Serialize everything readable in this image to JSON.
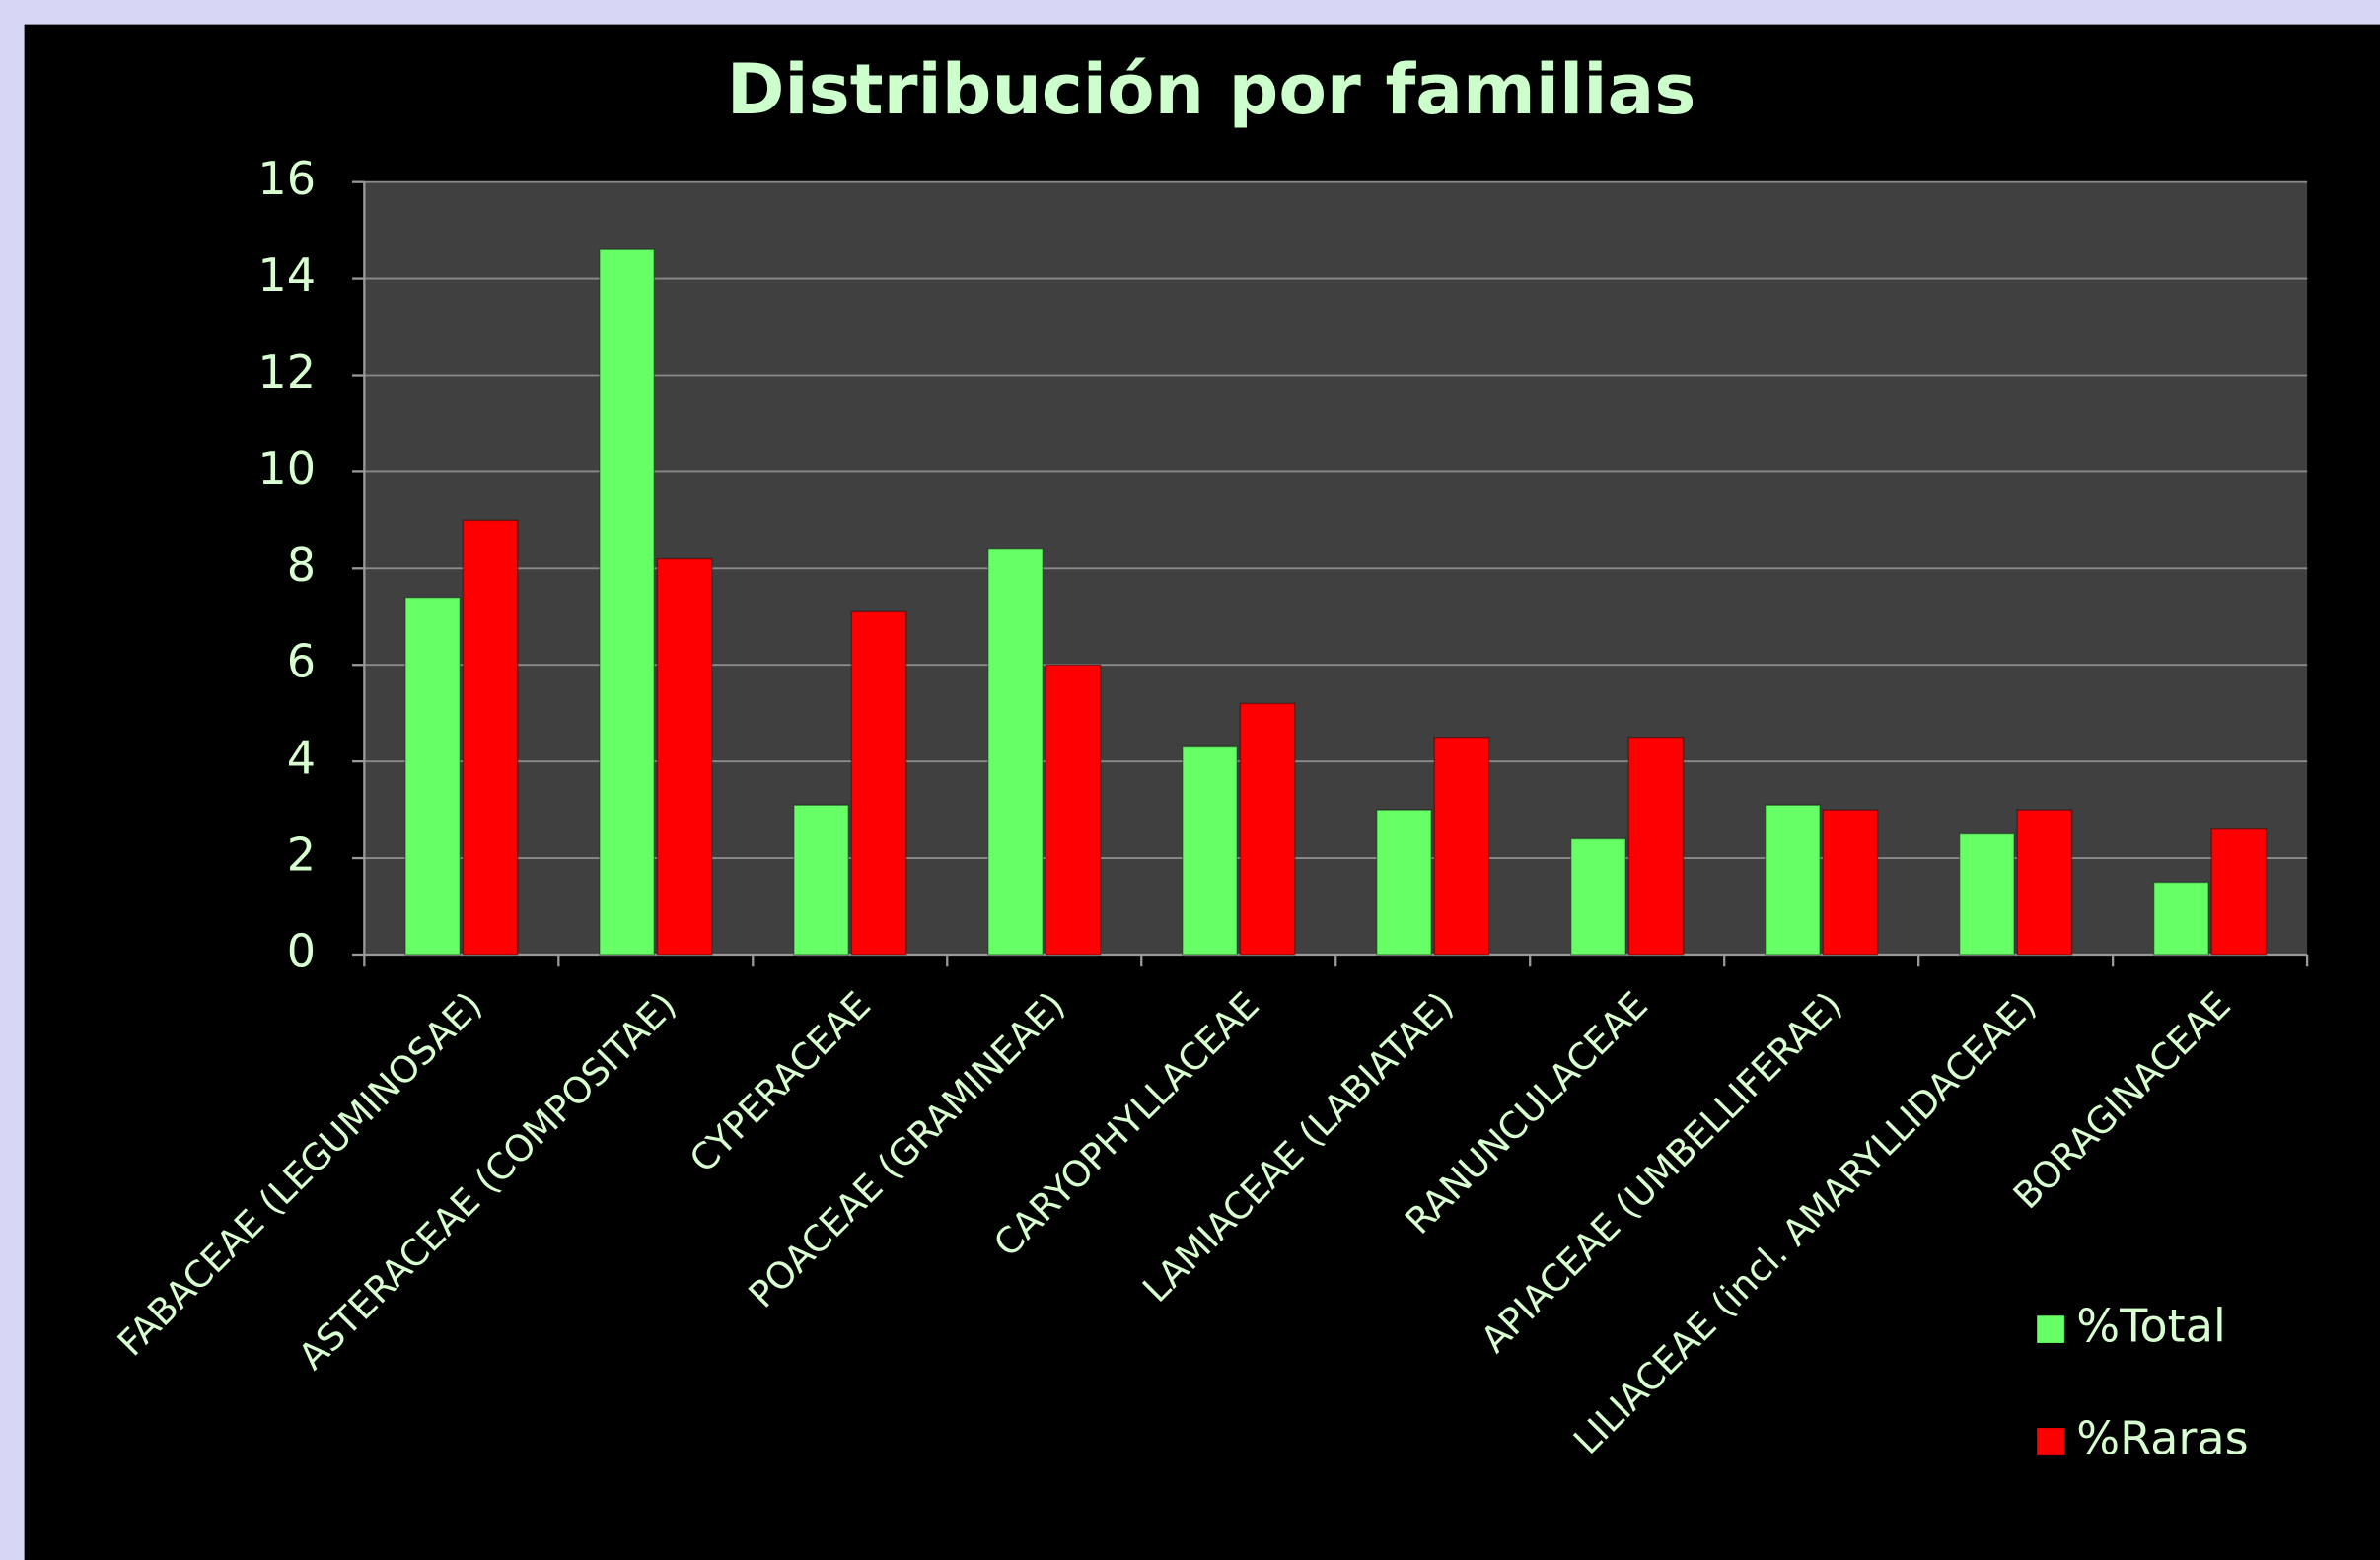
{
  "chart_data": {
    "type": "bar",
    "title": "Distribución por familias",
    "categories": [
      "FABACEAE (LEGUMINOSAE)",
      "ASTERACEAE (COMPOSITAE)",
      "CYPERACEAE",
      "POACEAE (GRAMINEAE)",
      "CARYOPHYLLACEAE",
      "LAMIACEAE (LABIATAE)",
      "RANUNCULACEAE",
      "APIACEAE (UMBELLIFERAE)",
      "LILIACEAE (incl. AMARYLLIDACEAE)",
      "BORAGINACEAE"
    ],
    "series": [
      {
        "name": "%Total",
        "color": "#66ff66",
        "values": [
          7.4,
          14.6,
          3.1,
          8.4,
          4.3,
          3.0,
          2.4,
          3.1,
          2.5,
          1.5
        ]
      },
      {
        "name": "%Raras",
        "color": "#ff0000",
        "values": [
          9.0,
          8.2,
          7.1,
          6.0,
          5.2,
          4.5,
          4.5,
          3.0,
          3.0,
          2.6
        ]
      }
    ],
    "ylim": [
      0,
      16
    ],
    "yticks": [
      0,
      2,
      4,
      6,
      8,
      10,
      12,
      14,
      16
    ],
    "grid": true,
    "legend": "bottom-right"
  }
}
